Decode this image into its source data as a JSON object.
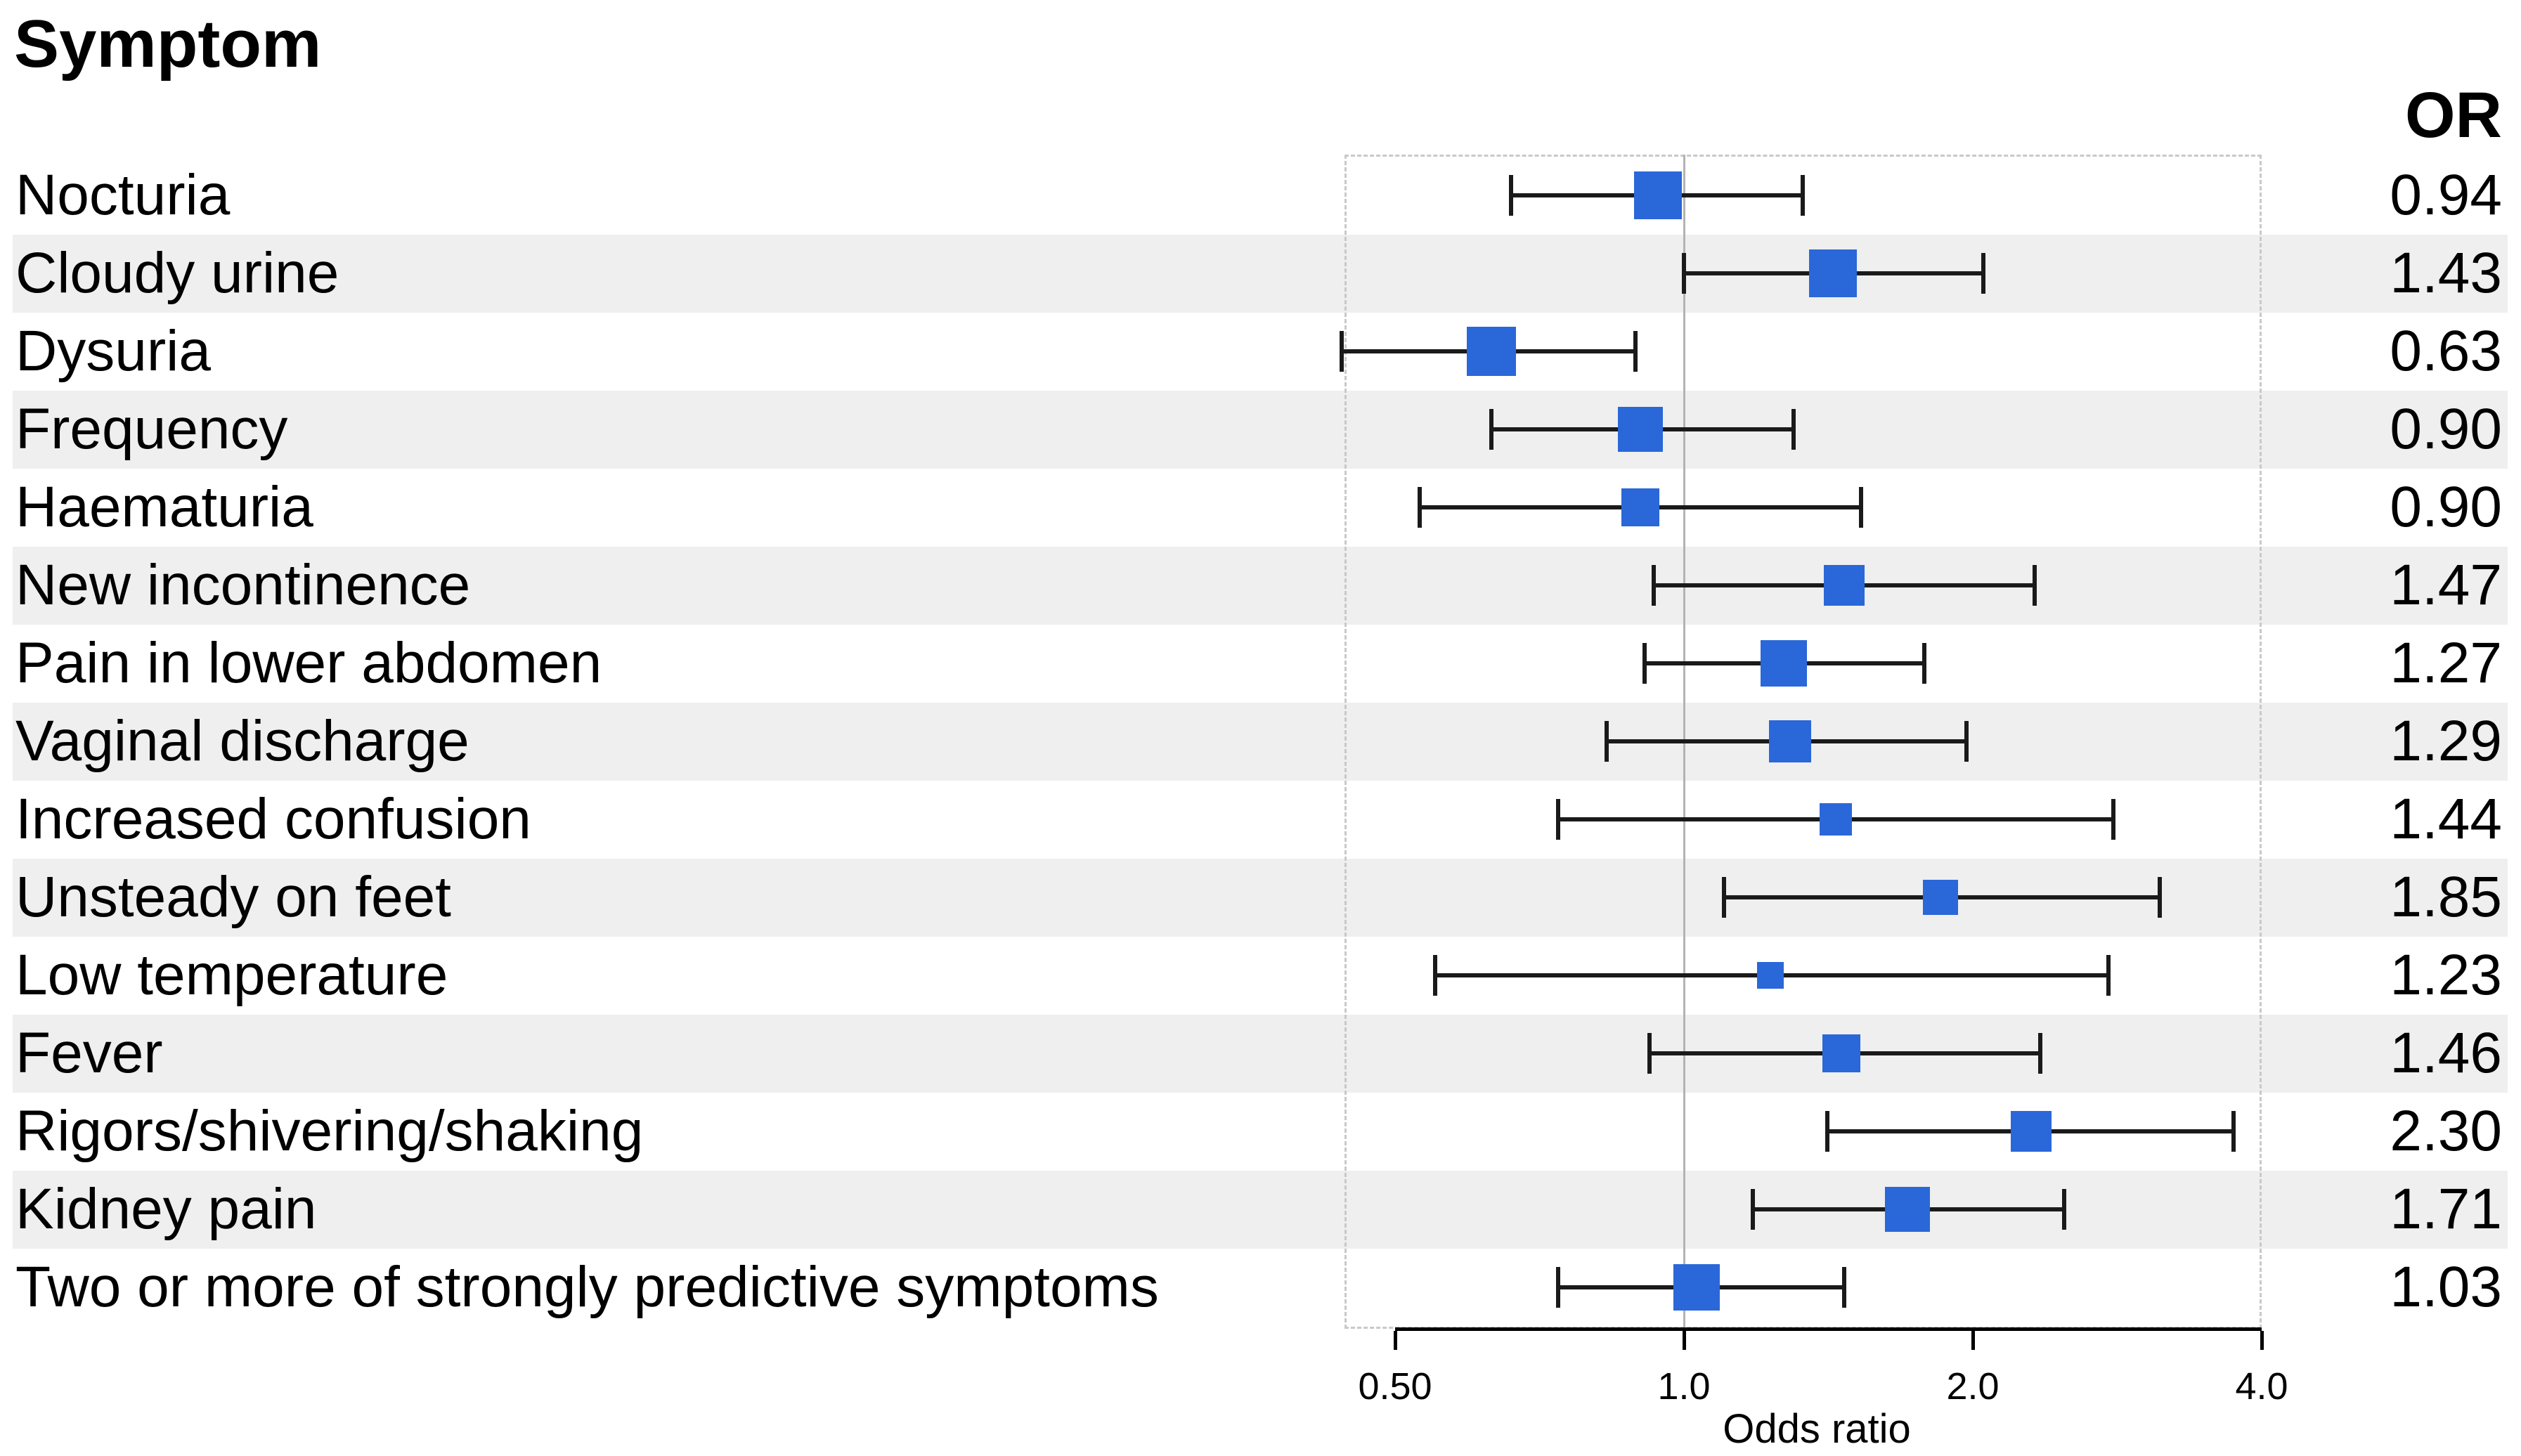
{
  "title": "Symptom",
  "or_header": "OR",
  "axis": {
    "label": "Odds ratio",
    "scale": "log2",
    "reference_value": 1.0,
    "ticks": [
      {
        "label": "0.50",
        "value": 0.5
      },
      {
        "label": "1.0",
        "value": 1.0
      },
      {
        "label": "2.0",
        "value": 2.0
      },
      {
        "label": "4.0",
        "value": 4.0
      }
    ]
  },
  "colors": {
    "marker": "#2a67d9",
    "band": "#efefef",
    "ci_line": "#1a1a1a",
    "axis_line": "#000000",
    "reference_line": "#b3b3b3",
    "dashed_border": "#c9c9c9",
    "text": "#000000"
  },
  "chart_data": {
    "type": "forest",
    "title": "Symptom",
    "value_column_header": "OR",
    "xlabel": "Odds ratio",
    "x_scale": "log",
    "x_ticks": [
      0.5,
      1.0,
      2.0,
      4.0
    ],
    "x_range": [
      0.44,
      4.0
    ],
    "reference_line": 1.0,
    "rows": [
      {
        "label": "Nocturia",
        "or_label": "0.94",
        "or": 0.94,
        "ci_low": 0.66,
        "ci_high": 1.33,
        "marker_px": 68,
        "shaded": false
      },
      {
        "label": "Cloudy urine",
        "or_label": "1.43",
        "or": 1.43,
        "ci_low": 1.0,
        "ci_high": 2.05,
        "marker_px": 68,
        "shaded": true
      },
      {
        "label": "Dysuria",
        "or_label": "0.63",
        "or": 0.63,
        "ci_low": 0.44,
        "ci_high": 0.89,
        "marker_px": 70,
        "shaded": false
      },
      {
        "label": "Frequency",
        "or_label": "0.90",
        "or": 0.9,
        "ci_low": 0.63,
        "ci_high": 1.3,
        "marker_px": 64,
        "shaded": true
      },
      {
        "label": "Haematuria",
        "or_label": "0.90",
        "or": 0.9,
        "ci_low": 0.53,
        "ci_high": 1.53,
        "marker_px": 54,
        "shaded": false
      },
      {
        "label": "New incontinence",
        "or_label": "1.47",
        "or": 1.47,
        "ci_low": 0.93,
        "ci_high": 2.32,
        "marker_px": 58,
        "shaded": true
      },
      {
        "label": "Pain in lower abdomen",
        "or_label": "1.27",
        "or": 1.27,
        "ci_low": 0.91,
        "ci_high": 1.78,
        "marker_px": 66,
        "shaded": false
      },
      {
        "label": "Vaginal discharge",
        "or_label": "1.29",
        "or": 1.29,
        "ci_low": 0.83,
        "ci_high": 1.97,
        "marker_px": 60,
        "shaded": true
      },
      {
        "label": "Increased confusion",
        "or_label": "1.44",
        "or": 1.44,
        "ci_low": 0.74,
        "ci_high": 2.8,
        "marker_px": 46,
        "shaded": false
      },
      {
        "label": "Unsteady on feet",
        "or_label": "1.85",
        "or": 1.85,
        "ci_low": 1.1,
        "ci_high": 3.13,
        "marker_px": 50,
        "shaded": true
      },
      {
        "label": "Low temperature",
        "or_label": "1.23",
        "or": 1.23,
        "ci_low": 0.55,
        "ci_high": 2.77,
        "marker_px": 38,
        "shaded": false
      },
      {
        "label": "Fever",
        "or_label": "1.46",
        "or": 1.46,
        "ci_low": 0.92,
        "ci_high": 2.35,
        "marker_px": 54,
        "shaded": true
      },
      {
        "label": "Rigors/shivering/shaking",
        "or_label": "2.30",
        "or": 2.3,
        "ci_low": 1.41,
        "ci_high": 3.74,
        "marker_px": 58,
        "shaded": false
      },
      {
        "label": "Kidney pain",
        "or_label": "1.71",
        "or": 1.71,
        "ci_low": 1.18,
        "ci_high": 2.49,
        "marker_px": 64,
        "shaded": true
      },
      {
        "label": "Two or more of strongly predictive symptoms",
        "or_label": "1.03",
        "or": 1.03,
        "ci_low": 0.74,
        "ci_high": 1.47,
        "marker_px": 66,
        "shaded": false
      }
    ]
  }
}
